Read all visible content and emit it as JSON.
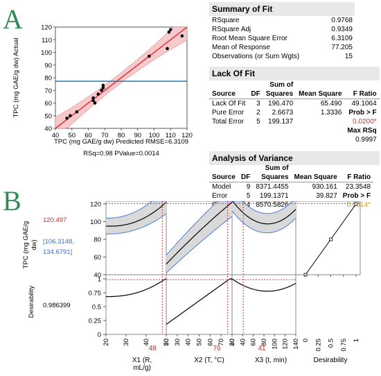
{
  "panelA": {
    "letter": "A",
    "chart_data": {
      "type": "scatter",
      "ylabel": "TPC (mg GAE/g dw) Actual",
      "xlabel_line1": "TPC (mg GAE/g dw) Predicted RMSE=6.3109",
      "xlabel_line2": "RSq=0.98 PValue=0.0014",
      "xlim": [
        40,
        120
      ],
      "ylim": [
        40,
        120
      ],
      "xticks": [
        "40",
        "50",
        "60",
        "70",
        "80",
        "90",
        "100",
        "110",
        "120"
      ],
      "yticks": [
        "40",
        "50",
        "60",
        "70",
        "80",
        "90",
        "100",
        "110",
        "120"
      ],
      "mean_line": 77.205,
      "points": [
        [
          47,
          48
        ],
        [
          49,
          50
        ],
        [
          53,
          53
        ],
        [
          63,
          62
        ],
        [
          63,
          64
        ],
        [
          64,
          60
        ],
        [
          66,
          67
        ],
        [
          68,
          70
        ],
        [
          69,
          74
        ],
        [
          69,
          72
        ],
        [
          97,
          97
        ],
        [
          108,
          103
        ],
        [
          109,
          116
        ],
        [
          110,
          118
        ],
        [
          117,
          113
        ]
      ],
      "colors": {
        "fit": "#e8303a",
        "band": "#f6c9cb",
        "mean": "#1f77b4"
      }
    }
  },
  "summary": {
    "title": "Summary of Fit",
    "rows": [
      {
        "label": "RSquare",
        "value": "0.9768"
      },
      {
        "label": "RSquare Adj",
        "value": "0.9349"
      },
      {
        "label": "Root Mean Square Error",
        "value": "6.3109"
      },
      {
        "label": "Mean of Response",
        "value": "77.205"
      },
      {
        "label": "Observations (or Sum Wgts)",
        "value": "15"
      }
    ]
  },
  "lof": {
    "title": "Lack Of Fit",
    "header": {
      "source": "Source",
      "df": "DF",
      "ss1": "Sum of",
      "ss2": "Squares",
      "ms": "Mean Square",
      "f": "F Ratio"
    },
    "rows": [
      {
        "source": "Lack Of Fit",
        "df": "3",
        "ss": "196.470",
        "ms": "65.490",
        "f": "49.1064"
      },
      {
        "source": "Pure Error",
        "df": "2",
        "ss": "2.6673",
        "ms": "1.3336",
        "f": "Prob > F"
      },
      {
        "source": "Total Error",
        "df": "5",
        "ss": "199.137",
        "ms": "",
        "f": "0.0200*"
      }
    ],
    "maxrsq_label": "Max RSq",
    "maxrsq_value": "0.9997"
  },
  "anova": {
    "title": "Analysis of Variance",
    "header": {
      "source": "Source",
      "df": "DF",
      "ss1": "Sum of",
      "ss2": "Squares",
      "ms": "Mean Square",
      "f": "F Ratio"
    },
    "rows": [
      {
        "source": "Model",
        "df": "9",
        "ss": "8371.4455",
        "ms": "930.161",
        "f": "23.3548"
      },
      {
        "source": "Error",
        "df": "5",
        "ss": "199.1371",
        "ms": "39.827",
        "f": "Prob > F"
      },
      {
        "source": "C. Total",
        "df": "14",
        "ss": "8570.5826",
        "ms": "",
        "f": "0.0014*"
      }
    ]
  },
  "panelB": {
    "letter": "B",
    "y1label_l1": "TPC (mg GAE/g",
    "y1label_l2": "dw)",
    "pred_value": "120.497",
    "ci_l1": "[106.3148,",
    "ci_l2": "134.6791]",
    "y2label": "Desirability",
    "desir_value": "0.986399",
    "y1ticks": [
      "40",
      "60",
      "80",
      "100",
      "120"
    ],
    "y2ticks": [
      "0",
      "0.25",
      "0.5",
      "0.75",
      "1"
    ],
    "factors": [
      {
        "current": "48",
        "name_l1": "X1 (R,",
        "name_l2": "mL/g)",
        "ticks": [
          "20",
          "30",
          "40",
          "50"
        ],
        "range": [
          20,
          50
        ]
      },
      {
        "current": "76",
        "name_l1": "X2 (T, °C)",
        "name_l2": "",
        "ticks": [
          "20",
          "30",
          "40",
          "50",
          "60",
          "70",
          "80"
        ],
        "range": [
          20,
          80
        ]
      },
      {
        "current": "41",
        "name_l1": "X3 (t, min)",
        "name_l2": "",
        "ticks": [
          "20",
          "40",
          "60",
          "80",
          "100",
          "120",
          "140"
        ],
        "range": [
          20,
          140
        ]
      }
    ],
    "desir_axis": {
      "name": "Desirability",
      "ticks": [
        "0",
        "0.25",
        "0.5",
        "0.75",
        "1"
      ]
    },
    "colors": {
      "curve": "#000000",
      "band": "#d9d9d9",
      "ci": "#4a7fd8",
      "crosshair": "#d03030"
    }
  }
}
